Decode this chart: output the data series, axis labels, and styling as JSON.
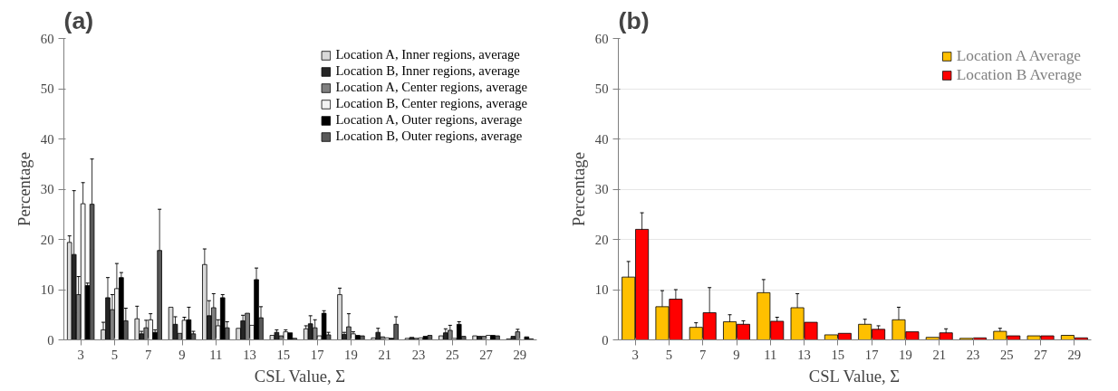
{
  "chart_data": [
    {
      "type": "bar",
      "title": "(a)",
      "xlabel": "CSL Value, Σ",
      "ylabel": "Percentage",
      "categories": [
        "3",
        "5",
        "7",
        "9",
        "11",
        "13",
        "15",
        "17",
        "19",
        "21",
        "23",
        "25",
        "27",
        "29"
      ],
      "ylim": [
        0,
        60
      ],
      "yticks": [
        0,
        10,
        20,
        30,
        40,
        50,
        60
      ],
      "grid": false,
      "legend": "top right",
      "series": [
        {
          "name": "Location A, Inner regions, average",
          "color": "#d9d9d9",
          "values": [
            19.4,
            2.0,
            4.2,
            6.5,
            15.0,
            2.3,
            0.9,
            2.2,
            9.0,
            0.4,
            0.3,
            0.8,
            0.8,
            0.2
          ],
          "errors": [
            1.3,
            1.5,
            2.5,
            null,
            3.1,
            null,
            null,
            0.6,
            1.3,
            null,
            null,
            null,
            null,
            null
          ]
        },
        {
          "name": "Location B, Inner regions, average",
          "color": "#262626",
          "values": [
            17.0,
            8.4,
            1.2,
            3.1,
            4.8,
            3.8,
            1.5,
            3.2,
            1.1,
            1.5,
            0.5,
            1.4,
            0.7,
            0.7
          ],
          "errors": [
            12.7,
            4.0,
            0.5,
            1.5,
            3.0,
            1.1,
            0.5,
            1.6,
            0.4,
            0.8,
            null,
            0.8,
            null,
            null
          ]
        },
        {
          "name": "Location A, Center regions, average",
          "color": "#808080",
          "values": [
            9.0,
            6.0,
            2.4,
            1.3,
            6.4,
            5.3,
            0.8,
            2.4,
            2.6,
            0.6,
            0.3,
            1.9,
            0.7,
            1.6
          ],
          "errors": [
            3.6,
            3.0,
            1.5,
            null,
            2.8,
            null,
            null,
            1.6,
            2.6,
            null,
            null,
            1.0,
            null,
            0.5
          ]
        },
        {
          "name": "Location B, Center regions, average",
          "color": "#f2f2f2",
          "values": [
            27.1,
            10.2,
            4.0,
            3.9,
            2.8,
            2.9,
            1.6,
            0.8,
            1.2,
            0.4,
            0.4,
            0.3,
            0.9,
            null
          ],
          "errors": [
            4.2,
            5.0,
            1.2,
            0.6,
            1.2,
            null,
            0.4,
            null,
            0.4,
            null,
            null,
            null,
            null,
            null
          ]
        },
        {
          "name": "Location A, Outer regions, average",
          "color": "#000000",
          "values": [
            10.8,
            12.4,
            1.5,
            4.0,
            8.4,
            12.0,
            1.4,
            5.3,
            0.9,
            0.3,
            0.7,
            3.1,
            0.9,
            0.6
          ],
          "errors": [
            0.5,
            1.0,
            0.5,
            2.5,
            0.6,
            2.3,
            null,
            0.5,
            null,
            null,
            null,
            0.5,
            null,
            null
          ]
        },
        {
          "name": "Location B, Outer regions, average",
          "color": "#595959",
          "values": [
            27.0,
            3.8,
            17.8,
            1.2,
            2.4,
            4.4,
            0.3,
            1.0,
            0.8,
            3.1,
            0.9,
            0.7,
            0.8,
            0.2
          ],
          "errors": [
            9.0,
            2.5,
            8.2,
            0.5,
            1.2,
            2.2,
            null,
            0.5,
            null,
            1.5,
            null,
            null,
            null,
            null
          ]
        }
      ]
    },
    {
      "type": "bar",
      "title": "(b)",
      "xlabel": "CSL Value, Σ",
      "ylabel": "Percentage",
      "categories": [
        "3",
        "5",
        "7",
        "9",
        "11",
        "13",
        "15",
        "17",
        "19",
        "21",
        "23",
        "25",
        "27",
        "29"
      ],
      "ylim": [
        0,
        60
      ],
      "yticks": [
        0,
        10,
        20,
        30,
        40,
        50,
        60
      ],
      "grid": "y",
      "legend": "top right",
      "series": [
        {
          "name": "Location A Average",
          "color": "#ffc000",
          "values": [
            12.5,
            6.6,
            2.5,
            3.6,
            9.4,
            6.4,
            1.0,
            3.1,
            4.0,
            0.5,
            0.3,
            1.7,
            0.8,
            0.9
          ],
          "errors": [
            3.1,
            3.2,
            0.9,
            1.4,
            2.6,
            2.8,
            null,
            1.0,
            2.5,
            null,
            null,
            0.6,
            null,
            null
          ]
        },
        {
          "name": "Location B Average",
          "color": "#ff0000",
          "values": [
            22.0,
            8.1,
            5.4,
            3.1,
            3.7,
            3.5,
            1.3,
            2.1,
            1.6,
            1.4,
            0.4,
            0.8,
            0.8,
            0.4
          ],
          "errors": [
            3.3,
            1.9,
            5.0,
            0.7,
            0.8,
            null,
            null,
            0.7,
            null,
            0.8,
            null,
            null,
            null,
            null
          ]
        }
      ]
    }
  ]
}
